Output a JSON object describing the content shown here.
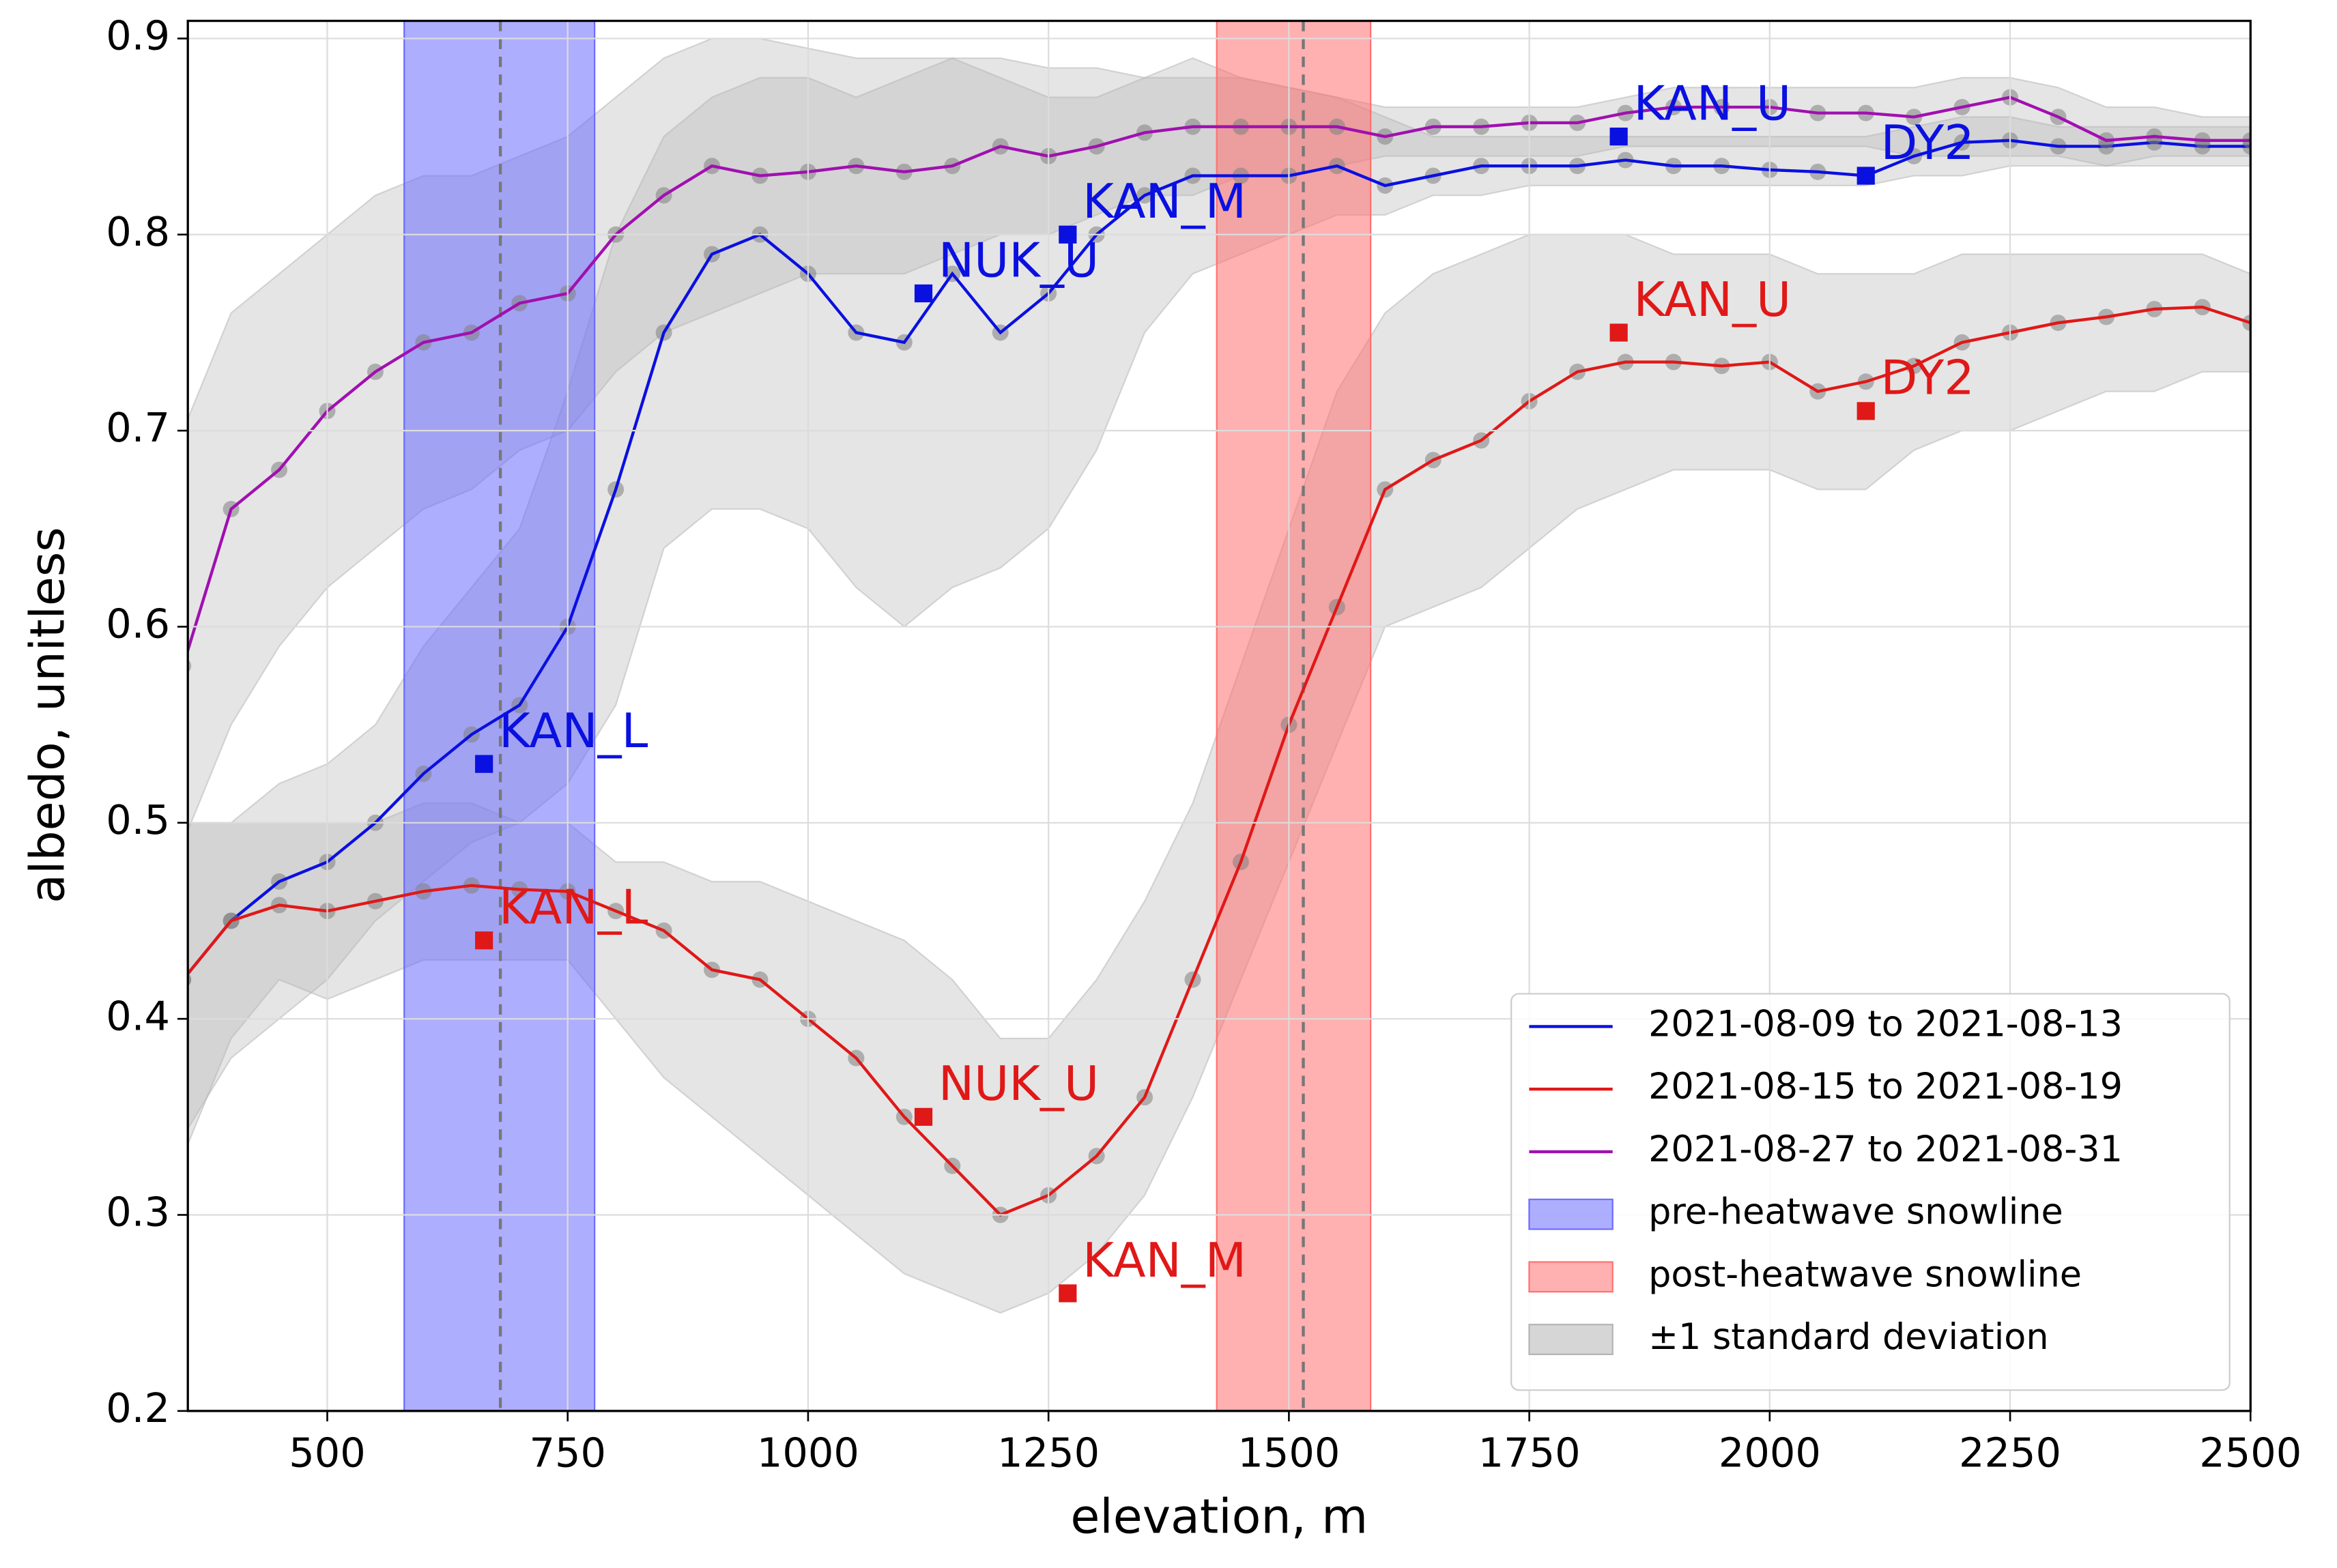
{
  "chart_data": {
    "type": "line",
    "xlabel": "elevation, m",
    "ylabel": "albedo, unitless",
    "xlim": [
      355,
      2500
    ],
    "ylim": [
      0.2,
      0.909
    ],
    "xticks": [
      500,
      750,
      1000,
      1250,
      1500,
      1750,
      2000,
      2250,
      2500
    ],
    "yticks": [
      0.2,
      0.3,
      0.4,
      0.5,
      0.6,
      0.7,
      0.8,
      0.9
    ],
    "grid": true,
    "legend": "lower right",
    "marker_color": "#808080",
    "x": [
      350,
      400,
      450,
      500,
      550,
      600,
      650,
      700,
      750,
      800,
      850,
      900,
      950,
      1000,
      1050,
      1100,
      1150,
      1200,
      1250,
      1300,
      1350,
      1400,
      1450,
      1500,
      1550,
      1600,
      1650,
      1700,
      1750,
      1800,
      1850,
      1900,
      1950,
      2000,
      2050,
      2100,
      2150,
      2200,
      2250,
      2300,
      2350,
      2400,
      2450,
      2500
    ],
    "series": [
      {
        "name": "2021-08-09 to 2021-08-13",
        "color": "#0a10e0",
        "values": [
          0.42,
          0.45,
          0.47,
          0.48,
          0.5,
          0.525,
          0.545,
          0.56,
          0.6,
          0.67,
          0.75,
          0.79,
          0.8,
          0.78,
          0.75,
          0.745,
          0.78,
          0.75,
          0.77,
          0.8,
          0.82,
          0.83,
          0.83,
          0.83,
          0.835,
          0.825,
          0.83,
          0.835,
          0.835,
          0.835,
          0.838,
          0.835,
          0.835,
          0.833,
          0.832,
          0.83,
          0.84,
          0.847,
          0.848,
          0.845,
          0.845,
          0.847,
          0.845,
          0.845
        ],
        "lower": [
          0.34,
          0.38,
          0.4,
          0.42,
          0.45,
          0.47,
          0.49,
          0.5,
          0.52,
          0.56,
          0.64,
          0.66,
          0.66,
          0.65,
          0.62,
          0.6,
          0.62,
          0.63,
          0.65,
          0.69,
          0.75,
          0.78,
          0.79,
          0.8,
          0.81,
          0.81,
          0.82,
          0.82,
          0.825,
          0.825,
          0.825,
          0.825,
          0.825,
          0.825,
          0.825,
          0.825,
          0.83,
          0.83,
          0.835,
          0.835,
          0.835,
          0.835,
          0.835,
          0.835
        ],
        "upper": [
          0.5,
          0.5,
          0.52,
          0.53,
          0.55,
          0.59,
          0.62,
          0.65,
          0.72,
          0.8,
          0.85,
          0.87,
          0.88,
          0.88,
          0.87,
          0.88,
          0.89,
          0.88,
          0.87,
          0.87,
          0.88,
          0.89,
          0.88,
          0.875,
          0.87,
          0.86,
          0.85,
          0.85,
          0.85,
          0.85,
          0.85,
          0.85,
          0.85,
          0.85,
          0.85,
          0.85,
          0.855,
          0.86,
          0.86,
          0.855,
          0.855,
          0.855,
          0.855,
          0.855
        ]
      },
      {
        "name": "2021-08-15 to 2021-08-19",
        "color": "#e01818",
        "values": [
          0.42,
          0.45,
          0.458,
          0.455,
          0.46,
          0.465,
          0.468,
          0.466,
          0.465,
          0.455,
          0.445,
          0.425,
          0.42,
          0.4,
          0.38,
          0.35,
          0.325,
          0.3,
          0.31,
          0.33,
          0.36,
          0.42,
          0.48,
          0.55,
          0.61,
          0.67,
          0.685,
          0.695,
          0.715,
          0.73,
          0.735,
          0.735,
          0.733,
          0.735,
          0.72,
          0.725,
          0.733,
          0.745,
          0.75,
          0.755,
          0.758,
          0.762,
          0.763,
          0.755
        ],
        "lower": [
          0.33,
          0.39,
          0.42,
          0.41,
          0.42,
          0.43,
          0.43,
          0.43,
          0.43,
          0.4,
          0.37,
          0.35,
          0.33,
          0.31,
          0.29,
          0.27,
          0.26,
          0.25,
          0.26,
          0.28,
          0.31,
          0.36,
          0.42,
          0.48,
          0.54,
          0.6,
          0.61,
          0.62,
          0.64,
          0.66,
          0.67,
          0.68,
          0.68,
          0.68,
          0.67,
          0.67,
          0.69,
          0.7,
          0.7,
          0.71,
          0.72,
          0.72,
          0.73,
          0.73
        ],
        "upper": [
          0.5,
          0.5,
          0.5,
          0.5,
          0.5,
          0.51,
          0.51,
          0.5,
          0.5,
          0.48,
          0.48,
          0.47,
          0.47,
          0.46,
          0.45,
          0.44,
          0.42,
          0.39,
          0.39,
          0.42,
          0.46,
          0.51,
          0.58,
          0.65,
          0.72,
          0.76,
          0.78,
          0.79,
          0.8,
          0.8,
          0.8,
          0.79,
          0.79,
          0.79,
          0.78,
          0.78,
          0.78,
          0.79,
          0.79,
          0.79,
          0.79,
          0.79,
          0.79,
          0.78
        ]
      },
      {
        "name": "2021-08-27 to 2021-08-31",
        "color": "#a010b0",
        "values": [
          0.58,
          0.66,
          0.68,
          0.71,
          0.73,
          0.745,
          0.75,
          0.765,
          0.77,
          0.8,
          0.82,
          0.835,
          0.83,
          0.832,
          0.835,
          0.832,
          0.835,
          0.845,
          0.84,
          0.845,
          0.852,
          0.855,
          0.855,
          0.855,
          0.855,
          0.85,
          0.855,
          0.855,
          0.857,
          0.857,
          0.862,
          0.865,
          0.865,
          0.865,
          0.862,
          0.862,
          0.86,
          0.865,
          0.87,
          0.86,
          0.848,
          0.85,
          0.848,
          0.848
        ],
        "lower": [
          0.49,
          0.55,
          0.59,
          0.62,
          0.64,
          0.66,
          0.67,
          0.69,
          0.7,
          0.73,
          0.75,
          0.76,
          0.77,
          0.78,
          0.78,
          0.78,
          0.79,
          0.8,
          0.8,
          0.81,
          0.82,
          0.82,
          0.83,
          0.83,
          0.835,
          0.84,
          0.84,
          0.84,
          0.84,
          0.84,
          0.845,
          0.845,
          0.845,
          0.845,
          0.845,
          0.845,
          0.84,
          0.84,
          0.84,
          0.84,
          0.835,
          0.84,
          0.84,
          0.84
        ],
        "upper": [
          0.7,
          0.76,
          0.78,
          0.8,
          0.82,
          0.83,
          0.83,
          0.84,
          0.85,
          0.87,
          0.89,
          0.9,
          0.9,
          0.895,
          0.89,
          0.89,
          0.89,
          0.89,
          0.885,
          0.885,
          0.88,
          0.88,
          0.88,
          0.875,
          0.87,
          0.865,
          0.865,
          0.865,
          0.865,
          0.865,
          0.87,
          0.875,
          0.875,
          0.875,
          0.875,
          0.875,
          0.875,
          0.88,
          0.88,
          0.875,
          0.865,
          0.865,
          0.86,
          0.86
        ]
      }
    ],
    "band": {
      "name": "±1 standard deviation",
      "color": "#b4b4b4"
    },
    "spans": [
      {
        "name": "pre-heatwave snowline",
        "color": "#6b6bff",
        "range": [
          580,
          778
        ],
        "center": 680
      },
      {
        "name": "post-heatwave snowline",
        "color": "#ff7070",
        "range": [
          1425,
          1585
        ],
        "center": 1515
      }
    ],
    "stations": [
      {
        "name": "KAN_L",
        "color": "#0a10e0",
        "x": 663,
        "y": 0.53
      },
      {
        "name": "NUK_U",
        "color": "#0a10e0",
        "x": 1120,
        "y": 0.77
      },
      {
        "name": "KAN_M",
        "color": "#0a10e0",
        "x": 1270,
        "y": 0.8
      },
      {
        "name": "KAN_U",
        "color": "#0a10e0",
        "x": 1843,
        "y": 0.85
      },
      {
        "name": "DY2",
        "color": "#0a10e0",
        "x": 2100,
        "y": 0.83
      },
      {
        "name": "KAN_L",
        "color": "#e01818",
        "x": 663,
        "y": 0.44
      },
      {
        "name": "NUK_U",
        "color": "#e01818",
        "x": 1120,
        "y": 0.35
      },
      {
        "name": "KAN_M",
        "color": "#e01818",
        "x": 1270,
        "y": 0.26
      },
      {
        "name": "KAN_U",
        "color": "#e01818",
        "x": 1843,
        "y": 0.75
      },
      {
        "name": "DY2",
        "color": "#e01818",
        "x": 2100,
        "y": 0.71
      }
    ]
  }
}
